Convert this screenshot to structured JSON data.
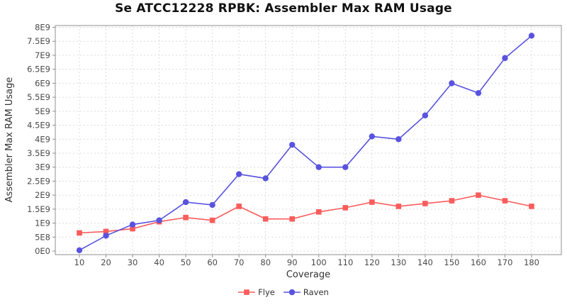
{
  "title": "Se ATCC12228 RPBK: Assembler Max RAM Usage",
  "chart_data": {
    "type": "line",
    "title": "Se ATCC12228 RPBK: Assembler Max RAM Usage",
    "xlabel": "Coverage",
    "ylabel": "Assembler Max RAM Usage",
    "x": [
      10,
      20,
      30,
      40,
      50,
      60,
      70,
      80,
      90,
      100,
      110,
      120,
      130,
      140,
      150,
      160,
      170,
      180
    ],
    "xtick_labels": [
      "10",
      "20",
      "30",
      "40",
      "50",
      "60",
      "70",
      "80",
      "90",
      "100",
      "110",
      "120",
      "130",
      "140",
      "150",
      "160",
      "170",
      "180"
    ],
    "ylim": [
      0,
      8000000000.0
    ],
    "ytick_step": 500000000.0,
    "ytick_labels": [
      "0E0",
      "5E8",
      "1E9",
      "1.5E9",
      "2E9",
      "2.5E9",
      "3E9",
      "3.5E9",
      "4E9",
      "4.5E9",
      "5E9",
      "5.5E9",
      "6E9",
      "6.5E9",
      "7E9",
      "7.5E9",
      "8E9"
    ],
    "grid": true,
    "legend_position": "bottom-center",
    "series": [
      {
        "name": "Flye",
        "color": "#FA5C5C",
        "marker": "square",
        "values": [
          650000000.0,
          700000000.0,
          800000000.0,
          1050000000.0,
          1200000000.0,
          1100000000.0,
          1600000000.0,
          1150000000.0,
          1150000000.0,
          1400000000.0,
          1550000000.0,
          1750000000.0,
          1600000000.0,
          1700000000.0,
          1800000000.0,
          2000000000.0,
          1800000000.0,
          1600000000.0
        ]
      },
      {
        "name": "Raven",
        "color": "#5853E0",
        "marker": "circle",
        "values": [
          30000000.0,
          550000000.0,
          950000000.0,
          1100000000.0,
          1750000000.0,
          1650000000.0,
          2750000000.0,
          2600000000.0,
          3800000000.0,
          3000000000.0,
          3000000000.0,
          4100000000.0,
          4000000000.0,
          4850000000.0,
          6000000000.0,
          5650000000.0,
          6900000000.0,
          7700000000.0
        ]
      }
    ],
    "colors": {
      "flye": "#FA5C5C",
      "raven": "#5853E0",
      "grid": "#dcdcdc",
      "frame": "#8f8f8f",
      "tick_text": "#4a4a4a",
      "title_text": "#111111"
    }
  }
}
